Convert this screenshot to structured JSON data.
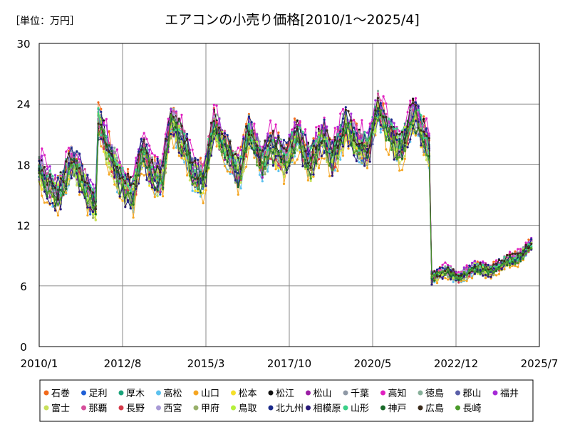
{
  "chart_data": {
    "type": "line",
    "title": "エアコンの小売り価格[2010/1～2025/4]",
    "unit_label": "［単位：万円］",
    "x_start": "2010/1",
    "x_end": "2025/7",
    "x_ticks": [
      "2010/1",
      "2012/8",
      "2015/3",
      "2017/10",
      "2020/5",
      "2022/12",
      "2025/7"
    ],
    "y_ticks": [
      0,
      6,
      12,
      18,
      24,
      30
    ],
    "ylim": [
      0,
      30
    ],
    "grid": true,
    "legend_position": "bottom",
    "series": [
      {
        "name": "石巻",
        "color": "#f26a1b",
        "offset": 0.9
      },
      {
        "name": "足利",
        "color": "#1f5fd6",
        "offset": -0.4
      },
      {
        "name": "厚木",
        "color": "#1aa37a",
        "offset": 0.3
      },
      {
        "name": "高松",
        "color": "#5cc1ee",
        "offset": -0.9
      },
      {
        "name": "山口",
        "color": "#f5a623",
        "offset": -1.3
      },
      {
        "name": "松本",
        "color": "#f5e02a",
        "offset": -0.6
      },
      {
        "name": "松江",
        "color": "#111111",
        "offset": 0.5
      },
      {
        "name": "松山",
        "color": "#9b1fa5",
        "offset": -0.2
      },
      {
        "name": "千葉",
        "color": "#8f99a6",
        "offset": 0.1
      },
      {
        "name": "高知",
        "color": "#e020c0",
        "offset": 1.4
      },
      {
        "name": "徳島",
        "color": "#88b09a",
        "offset": 0.6
      },
      {
        "name": "郡山",
        "color": "#5a5fa8",
        "offset": -0.1
      },
      {
        "name": "福井",
        "color": "#a52ad6",
        "offset": 0.8
      },
      {
        "name": "富士",
        "color": "#c8e05a",
        "offset": -0.7
      },
      {
        "name": "那覇",
        "color": "#d64f9c",
        "offset": 0.4
      },
      {
        "name": "長野",
        "color": "#d63a4a",
        "offset": -0.3
      },
      {
        "name": "西宮",
        "color": "#a89ad6",
        "offset": 0.2
      },
      {
        "name": "甲府",
        "color": "#98b06a",
        "offset": -0.5
      },
      {
        "name": "鳥取",
        "color": "#b5f03a",
        "offset": 0.0
      },
      {
        "name": "北九州",
        "color": "#1a2a8a",
        "offset": 0.7
      },
      {
        "name": "相模原",
        "color": "#2a1a7a",
        "offset": -0.8
      },
      {
        "name": "山形",
        "color": "#3ad088",
        "offset": 0.35
      },
      {
        "name": "神戸",
        "color": "#1a6a2a",
        "offset": -0.25
      },
      {
        "name": "広島",
        "color": "#3a2a1a",
        "offset": 0.55
      },
      {
        "name": "長崎",
        "color": "#4a9a2a",
        "offset": -0.45
      }
    ],
    "base_trend": [
      {
        "x": 2010.0,
        "y": 17.5
      },
      {
        "x": 2010.3,
        "y": 16.0
      },
      {
        "x": 2010.6,
        "y": 15.0
      },
      {
        "x": 2011.0,
        "y": 18.5
      },
      {
        "x": 2011.3,
        "y": 17.0
      },
      {
        "x": 2011.6,
        "y": 14.5
      },
      {
        "x": 2011.79,
        "y": 14.0
      },
      {
        "x": 2011.8,
        "y": 22.5
      },
      {
        "x": 2012.2,
        "y": 19.0
      },
      {
        "x": 2012.6,
        "y": 16.0
      },
      {
        "x": 2012.9,
        "y": 15.0
      },
      {
        "x": 2013.2,
        "y": 19.5
      },
      {
        "x": 2013.5,
        "y": 17.0
      },
      {
        "x": 2013.8,
        "y": 16.5
      },
      {
        "x": 2014.1,
        "y": 22.5
      },
      {
        "x": 2014.5,
        "y": 20.0
      },
      {
        "x": 2014.8,
        "y": 17.0
      },
      {
        "x": 2015.1,
        "y": 16.5
      },
      {
        "x": 2015.4,
        "y": 22.0
      },
      {
        "x": 2015.8,
        "y": 19.5
      },
      {
        "x": 2016.2,
        "y": 17.0
      },
      {
        "x": 2016.5,
        "y": 21.5
      },
      {
        "x": 2016.9,
        "y": 18.0
      },
      {
        "x": 2017.2,
        "y": 20.0
      },
      {
        "x": 2017.6,
        "y": 18.5
      },
      {
        "x": 2018.0,
        "y": 21.0
      },
      {
        "x": 2018.4,
        "y": 18.0
      },
      {
        "x": 2018.8,
        "y": 21.0
      },
      {
        "x": 2019.1,
        "y": 18.5
      },
      {
        "x": 2019.5,
        "y": 22.0
      },
      {
        "x": 2019.9,
        "y": 20.0
      },
      {
        "x": 2020.2,
        "y": 19.5
      },
      {
        "x": 2020.5,
        "y": 23.5
      },
      {
        "x": 2020.9,
        "y": 21.0
      },
      {
        "x": 2021.2,
        "y": 19.5
      },
      {
        "x": 2021.6,
        "y": 23.0
      },
      {
        "x": 2021.9,
        "y": 21.0
      },
      {
        "x": 2022.1,
        "y": 19.0
      },
      {
        "x": 2022.15,
        "y": 6.8
      },
      {
        "x": 2022.6,
        "y": 7.5
      },
      {
        "x": 2023.0,
        "y": 6.8
      },
      {
        "x": 2023.5,
        "y": 7.8
      },
      {
        "x": 2024.0,
        "y": 7.5
      },
      {
        "x": 2024.5,
        "y": 8.5
      },
      {
        "x": 2024.9,
        "y": 8.8
      },
      {
        "x": 2025.25,
        "y": 10.2
      }
    ]
  }
}
